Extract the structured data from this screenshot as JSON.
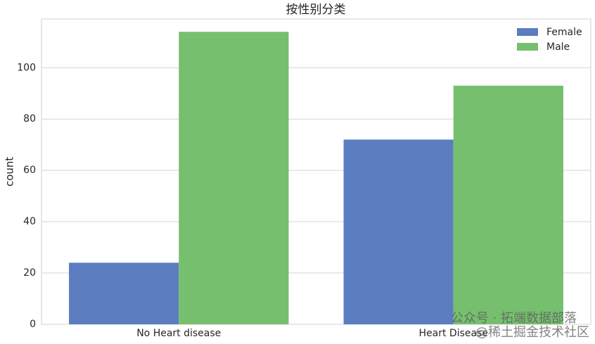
{
  "chart_data": {
    "type": "bar",
    "title": "按性别分类",
    "y_label": "count",
    "categories": [
      "No Heart disease",
      "Heart Disease"
    ],
    "series": [
      {
        "name": "Female",
        "color": "#5b7dc0",
        "values": [
          24,
          72
        ]
      },
      {
        "name": "Male",
        "color": "#76bf6f",
        "values": [
          114,
          93
        ]
      }
    ],
    "ylim": [
      0,
      119
    ],
    "yticks": [
      0,
      20,
      40,
      60,
      80,
      100
    ],
    "grid": true,
    "legend": "upper-right",
    "watermark": [
      "公众号 · 拓端数据部落",
      "@稀土掘金技术社区"
    ]
  }
}
